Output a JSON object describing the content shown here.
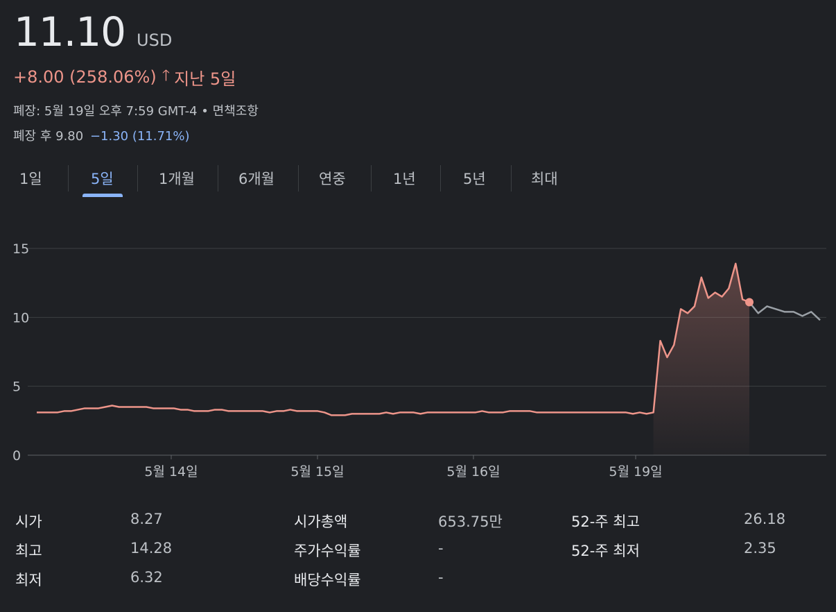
{
  "header": {
    "price": "11.10",
    "currency": "USD",
    "change": "+8.00 (258.06%)",
    "period": "지난 5일",
    "arrow_icon": "arrow-up-icon",
    "close_info": "폐장: 5월 19일 오후 7:59 GMT-4 • ",
    "disclaimer": "면책조항",
    "after_hours_label": "폐장 후 9.80",
    "after_hours_change": "−1.30 (11.71%)"
  },
  "tabs": [
    "1일",
    "5일",
    "1개월",
    "6개월",
    "연중",
    "1년",
    "5년",
    "최대"
  ],
  "active_tab": "5일",
  "colors": {
    "up": "#ee958a",
    "after": "#9aa0a6",
    "accent": "#8ab4f8",
    "grid": "#3c4043"
  },
  "chart_data": {
    "type": "line",
    "y_ticks": [
      "0",
      "5",
      "10",
      "15"
    ],
    "ylim": [
      0,
      17
    ],
    "x_tick_labels": [
      "5월 14일",
      "5월 15일",
      "5월 16일",
      "5월 19일"
    ],
    "grid": true,
    "series": [
      {
        "values": [
          3.1,
          3.1,
          3.1,
          3.1,
          3.2,
          3.2,
          3.3,
          3.4,
          3.4,
          3.4,
          3.5,
          3.6,
          3.5,
          3.5,
          3.5,
          3.5,
          3.5,
          3.4,
          3.4,
          3.4,
          3.4,
          3.3,
          3.3,
          3.2,
          3.2,
          3.2,
          3.3,
          3.3,
          3.2,
          3.2,
          3.2,
          3.2,
          3.2,
          3.2,
          3.1,
          3.2,
          3.2,
          3.3,
          3.2,
          3.2,
          3.2,
          3.2,
          3.1,
          2.9,
          2.9,
          2.9,
          3.0,
          3.0,
          3.0,
          3.0,
          3.0,
          3.1,
          3.0,
          3.1,
          3.1,
          3.1,
          3.0,
          3.1,
          3.1,
          3.1,
          3.1,
          3.1,
          3.1,
          3.1,
          3.1,
          3.2,
          3.1,
          3.1,
          3.1,
          3.2,
          3.2,
          3.2,
          3.2,
          3.1,
          3.1,
          3.1,
          3.1,
          3.1,
          3.1,
          3.1,
          3.1,
          3.1,
          3.1,
          3.1,
          3.1,
          3.1,
          3.1,
          3.0,
          3.1,
          3.0,
          3.1,
          8.3,
          7.1,
          8.0,
          10.6,
          10.3,
          10.8,
          12.9,
          11.4,
          11.8,
          11.5,
          12.1,
          13.9,
          11.3,
          11.1
        ],
        "color": "#ee958a"
      },
      {
        "values": [
          11.1,
          10.3,
          10.8,
          10.6,
          10.4,
          10.4,
          10.1,
          10.4,
          9.8
        ],
        "color": "#9aa0a6"
      }
    ]
  },
  "stats": [
    [
      {
        "label": "시가",
        "value": "8.27"
      },
      {
        "label": "시가총액",
        "value": "653.75만"
      },
      {
        "label": "52-주 최고",
        "value": "26.18"
      }
    ],
    [
      {
        "label": "최고",
        "value": "14.28"
      },
      {
        "label": "주가수익률",
        "value": "-"
      },
      {
        "label": "52-주 최저",
        "value": "2.35"
      }
    ],
    [
      {
        "label": "최저",
        "value": "6.32"
      },
      {
        "label": "배당수익률",
        "value": "-"
      }
    ]
  ]
}
